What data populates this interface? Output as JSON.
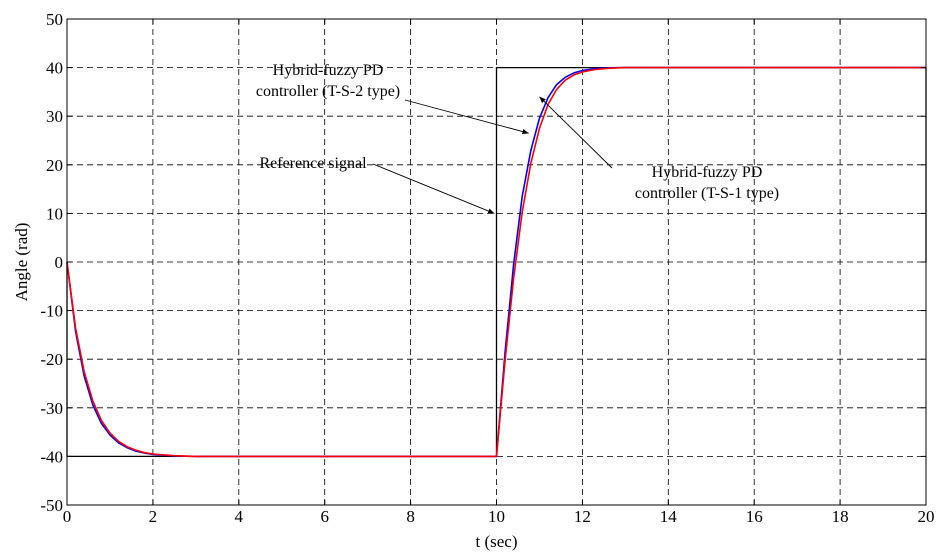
{
  "chart_data": {
    "type": "line",
    "title": "",
    "xlabel": "t (sec)",
    "ylabel": "Angle (rad)",
    "xlim": [
      0,
      20
    ],
    "ylim": [
      -50,
      50
    ],
    "xticks": [
      0,
      2,
      4,
      6,
      8,
      10,
      12,
      14,
      16,
      18,
      20
    ],
    "yticks": [
      -50,
      -40,
      -30,
      -20,
      -10,
      0,
      10,
      20,
      30,
      40,
      50
    ],
    "grid": true,
    "grid_style": "dashed",
    "series": [
      {
        "name": "Reference signal",
        "color": "#000000",
        "x": [
          0,
          0,
          10,
          10,
          20,
          20
        ],
        "y": [
          0,
          -40,
          -40,
          40,
          40,
          0
        ]
      },
      {
        "name": "Hybrid-fuzzy PD controller (T-S-2 type)",
        "color": "#0000ff",
        "x": [
          0,
          0.2,
          0.4,
          0.6,
          0.8,
          1.0,
          1.2,
          1.4,
          1.6,
          1.8,
          2.0,
          2.5,
          3,
          4,
          5,
          6,
          7,
          8,
          9,
          9.9,
          10,
          10.2,
          10.4,
          10.6,
          10.8,
          11.0,
          11.2,
          11.4,
          11.6,
          11.8,
          12.0,
          12.3,
          12.6,
          13,
          14,
          15,
          16,
          17,
          18,
          19,
          20
        ],
        "y": [
          0,
          -14.3,
          -23.5,
          -29.4,
          -33.2,
          -35.6,
          -37.2,
          -38.2,
          -38.9,
          -39.3,
          -39.6,
          -39.9,
          -40,
          -40,
          -40,
          -40,
          -40,
          -40,
          -40,
          -40,
          -40,
          -18.5,
          -0.3,
          13.6,
          23.0,
          29.6,
          33.8,
          36.5,
          38.0,
          38.9,
          39.4,
          39.8,
          39.95,
          40,
          40,
          40,
          40,
          40,
          40,
          40,
          40
        ]
      },
      {
        "name": "Hybrid-fuzzy PD controller (T-S-1 type)",
        "color": "#ff0000",
        "x": [
          0,
          0.2,
          0.4,
          0.6,
          0.8,
          1.0,
          1.2,
          1.4,
          1.6,
          1.8,
          2.0,
          2.5,
          3,
          4,
          5,
          6,
          7,
          8,
          9,
          9.9,
          10,
          10.2,
          10.4,
          10.6,
          10.8,
          11.0,
          11.2,
          11.4,
          11.6,
          11.8,
          12.0,
          12.3,
          12.6,
          13,
          14,
          15,
          16,
          17,
          18,
          19,
          20
        ],
        "y": [
          0,
          -13.6,
          -22.6,
          -28.6,
          -32.6,
          -35.2,
          -36.9,
          -38.0,
          -38.7,
          -39.2,
          -39.5,
          -39.85,
          -40,
          -40,
          -40,
          -40,
          -40,
          -40,
          -40,
          -40,
          -40,
          -20.2,
          -3.2,
          10.4,
          20.4,
          27.5,
          32.4,
          35.5,
          37.4,
          38.5,
          39.1,
          39.6,
          39.85,
          40,
          40,
          40,
          40,
          40,
          40,
          40,
          40
        ]
      }
    ],
    "annotations": [
      {
        "lines": [
          "Hybrid-fuzzy PD",
          "controller (T-S-2 type)"
        ],
        "target": [
          10.75,
          26.5
        ]
      },
      {
        "lines": [
          "Reference signal"
        ],
        "target": [
          9.95,
          10
        ]
      },
      {
        "lines": [
          "Hybrid-fuzzy PD",
          "controller (T-S-1 type)"
        ],
        "target": [
          11.0,
          34
        ]
      }
    ]
  }
}
